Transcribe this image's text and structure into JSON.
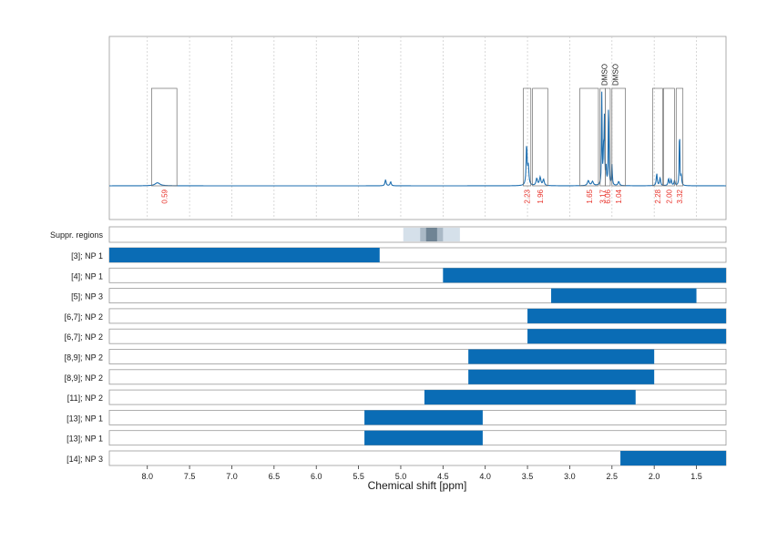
{
  "chart_data": {
    "type": "line",
    "xlabel": "Chemical shift [ppm]",
    "xlim": [
      8.45,
      1.15
    ],
    "x_reversed": true,
    "x_ticks": [
      8.0,
      7.5,
      7.0,
      6.5,
      6.0,
      5.5,
      5.0,
      4.5,
      4.0,
      3.5,
      3.0,
      2.5,
      2.0,
      1.5
    ],
    "x_tick_labels": [
      "8.0",
      "7.5",
      "7.0",
      "6.5",
      "6.0",
      "5.5",
      "5.0",
      "4.5",
      "4.0",
      "3.5",
      "3.0",
      "2.5",
      "2.0",
      "1.5"
    ],
    "colors": {
      "spectrum": "#1f6fb0",
      "bar": "#0a6cb5",
      "integral_label": "#e8322a",
      "grid": "#c8c8c8",
      "frame": "#9a9a9a"
    },
    "spectrum": {
      "baseline": 0.0,
      "peaks": [
        {
          "x": 7.88,
          "h": 0.03,
          "w": 0.035
        },
        {
          "x": 5.18,
          "h": 0.06,
          "w": 0.008
        },
        {
          "x": 5.12,
          "h": 0.04,
          "w": 0.008
        },
        {
          "x": 3.51,
          "h": 0.4,
          "w": 0.007
        },
        {
          "x": 3.49,
          "h": 0.18,
          "w": 0.008
        },
        {
          "x": 3.39,
          "h": 0.07,
          "w": 0.01
        },
        {
          "x": 3.35,
          "h": 0.08,
          "w": 0.01
        },
        {
          "x": 3.31,
          "h": 0.06,
          "w": 0.01
        },
        {
          "x": 2.78,
          "h": 0.05,
          "w": 0.012
        },
        {
          "x": 2.73,
          "h": 0.04,
          "w": 0.012
        },
        {
          "x": 2.62,
          "h": 0.9,
          "w": 0.004
        },
        {
          "x": 2.6,
          "h": 0.3,
          "w": 0.005
        },
        {
          "x": 2.59,
          "h": 0.65,
          "w": 0.004
        },
        {
          "x": 2.57,
          "h": 0.18,
          "w": 0.005
        },
        {
          "x": 2.54,
          "h": 0.95,
          "w": 0.004
        },
        {
          "x": 2.5,
          "h": 0.2,
          "w": 0.005
        },
        {
          "x": 2.42,
          "h": 0.04,
          "w": 0.01
        },
        {
          "x": 1.97,
          "h": 0.12,
          "w": 0.007
        },
        {
          "x": 1.93,
          "h": 0.08,
          "w": 0.007
        },
        {
          "x": 1.83,
          "h": 0.07,
          "w": 0.007
        },
        {
          "x": 1.8,
          "h": 0.06,
          "w": 0.007
        },
        {
          "x": 1.76,
          "h": 0.05,
          "w": 0.007
        },
        {
          "x": 1.7,
          "h": 0.62,
          "w": 0.004
        },
        {
          "x": 1.68,
          "h": 0.1,
          "w": 0.006
        }
      ]
    },
    "integration_regions": [
      {
        "x0": 7.95,
        "x1": 7.65,
        "label": "0.59"
      },
      {
        "x0": 3.55,
        "x1": 3.46,
        "label": "2.23"
      },
      {
        "x0": 3.44,
        "x1": 3.26,
        "label": "1.96"
      },
      {
        "x0": 2.88,
        "x1": 2.66,
        "label": "1.65"
      },
      {
        "x0": 2.64,
        "x1": 2.58,
        "label": "3.17"
      },
      {
        "x0": 2.58,
        "x1": 2.52,
        "label": "6.06"
      },
      {
        "x0": 2.5,
        "x1": 2.34,
        "label": "1.04"
      },
      {
        "x0": 2.02,
        "x1": 1.9,
        "label": "2.28"
      },
      {
        "x0": 1.89,
        "x1": 1.76,
        "label": "2.00"
      },
      {
        "x0": 1.74,
        "x1": 1.66,
        "label": "3.32"
      }
    ],
    "solvent_labels": [
      {
        "x": 2.59,
        "text": "DMSO"
      },
      {
        "x": 2.46,
        "text": "DMSO"
      }
    ],
    "suppression": {
      "label": "Suppr. regions",
      "regions": [
        {
          "x0": 4.97,
          "x1": 4.3,
          "level": 1
        },
        {
          "x0": 4.77,
          "x1": 4.5,
          "level": 2
        },
        {
          "x0": 4.7,
          "x1": 4.57,
          "level": 3
        }
      ]
    },
    "rows": [
      {
        "label": "[3]; NP 1",
        "x0": 8.45,
        "x1": 5.25
      },
      {
        "label": "[4]; NP 1",
        "x0": 4.5,
        "x1": 1.15
      },
      {
        "label": "[5]; NP 3",
        "x0": 3.22,
        "x1": 1.5
      },
      {
        "label": "[6,7]; NP 2",
        "x0": 3.5,
        "x1": 1.15
      },
      {
        "label": "[6,7]; NP 2",
        "x0": 3.5,
        "x1": 1.15
      },
      {
        "label": "[8,9]; NP 2",
        "x0": 4.2,
        "x1": 2.0
      },
      {
        "label": "[8,9]; NP 2",
        "x0": 4.2,
        "x1": 2.0
      },
      {
        "label": "[11]; NP 2",
        "x0": 4.72,
        "x1": 2.22
      },
      {
        "label": "[13]; NP 1",
        "x0": 5.43,
        "x1": 4.03
      },
      {
        "label": "[13]; NP 1",
        "x0": 5.43,
        "x1": 4.03
      },
      {
        "label": "[14]; NP 3",
        "x0": 2.4,
        "x1": 1.15
      }
    ]
  }
}
